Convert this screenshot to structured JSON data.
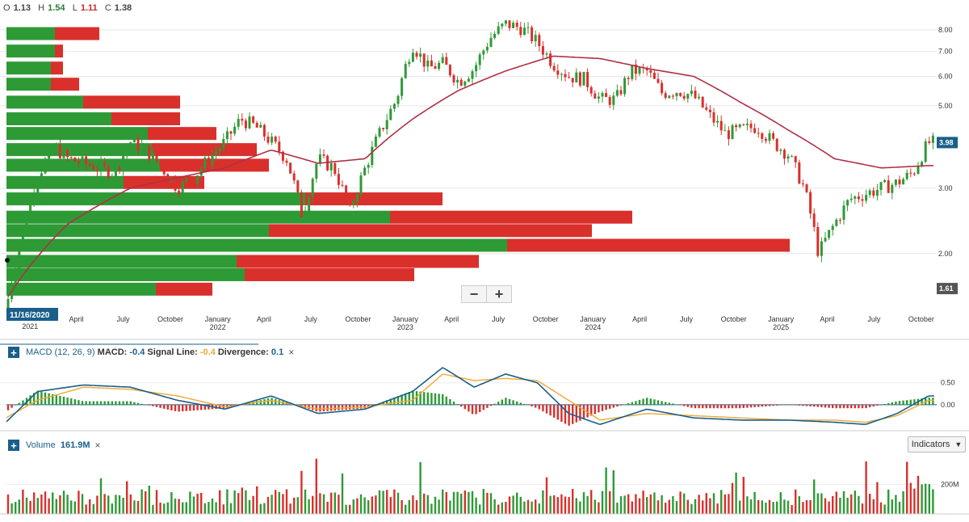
{
  "ohlc": {
    "o_label": "O",
    "o": "1.13",
    "h_label": "H",
    "h": "1.54",
    "l_label": "L",
    "l": "1.11",
    "c_label": "C",
    "c": "1.38"
  },
  "price_panel": {
    "y_ticks": [
      "8.00",
      "7.00",
      "6.00",
      "5.00",
      "3.00",
      "2.00"
    ],
    "last_price": "3.98",
    "ref_price": "1.61",
    "date_badge": "11/16/2020",
    "zoom_out": "−",
    "zoom_in": "+",
    "x_ticks": [
      {
        "label": "2021",
        "sub": ""
      },
      {
        "label": "April",
        "sub": ""
      },
      {
        "label": "July",
        "sub": ""
      },
      {
        "label": "October",
        "sub": ""
      },
      {
        "label": "January",
        "sub": "2022"
      },
      {
        "label": "April",
        "sub": ""
      },
      {
        "label": "July",
        "sub": ""
      },
      {
        "label": "October",
        "sub": ""
      },
      {
        "label": "January",
        "sub": "2023"
      },
      {
        "label": "April",
        "sub": ""
      },
      {
        "label": "July",
        "sub": ""
      },
      {
        "label": "October",
        "sub": ""
      },
      {
        "label": "January",
        "sub": "2024"
      },
      {
        "label": "April",
        "sub": ""
      },
      {
        "label": "July",
        "sub": ""
      },
      {
        "label": "October",
        "sub": ""
      },
      {
        "label": "January",
        "sub": "2025"
      },
      {
        "label": "April",
        "sub": ""
      },
      {
        "label": "July",
        "sub": ""
      },
      {
        "label": "October",
        "sub": ""
      }
    ]
  },
  "macd_panel": {
    "title": "MACD (12, 26, 9)",
    "macd_label": "MACD:",
    "macd": "-0.4",
    "signal_label": "Signal Line:",
    "signal": "-0.4",
    "div_label": "Divergence:",
    "div": "0.1",
    "close": "×",
    "y_ticks": [
      "0.50",
      "0.00"
    ]
  },
  "volume_panel": {
    "title": "Volume",
    "value": "161.9M",
    "close": "×",
    "y_tick": "200M",
    "indicators_btn": "Indicators"
  },
  "colors": {
    "up": "#2e9a36",
    "down": "#d9302c",
    "ma": "#b03045",
    "macd": "#1a5f8a",
    "signal": "#f0a830",
    "accent": "#1a5f8a"
  },
  "chart_data": [
    {
      "type": "candlestick",
      "x_range": [
        "2020-11-16",
        "2025-10-31"
      ],
      "y_scale": "log",
      "ylim": [
        1.4,
        8.8
      ],
      "y_ticks": [
        8,
        7,
        6,
        5,
        3,
        2
      ],
      "close_monthly": {
        "x": [
          "2020-11",
          "2020-12",
          "2021-01",
          "2021-02",
          "2021-03",
          "2021-04",
          "2021-05",
          "2021-06",
          "2021-07",
          "2021-08",
          "2021-09",
          "2021-10",
          "2021-11",
          "2021-12",
          "2022-01",
          "2022-02",
          "2022-03",
          "2022-04",
          "2022-05",
          "2022-06",
          "2022-07",
          "2022-08",
          "2022-09",
          "2022-10",
          "2022-11",
          "2022-12",
          "2023-01",
          "2023-02",
          "2023-03",
          "2023-04",
          "2023-05",
          "2023-06",
          "2023-07",
          "2023-08",
          "2023-09",
          "2023-10",
          "2023-11",
          "2023-12",
          "2024-01",
          "2024-02",
          "2024-03",
          "2024-04",
          "2024-05",
          "2024-06",
          "2024-07",
          "2024-08",
          "2024-09",
          "2024-10",
          "2024-11",
          "2024-12",
          "2025-01",
          "2025-02",
          "2025-03",
          "2025-04",
          "2025-05",
          "2025-06",
          "2025-07",
          "2025-08",
          "2025-09",
          "2025-10"
        ],
        "y": [
          1.4,
          2.2,
          3.2,
          3.9,
          3.6,
          3.5,
          3.4,
          3.3,
          4.0,
          3.8,
          3.4,
          3.0,
          3.2,
          3.6,
          4.0,
          4.6,
          4.4,
          4.0,
          3.6,
          2.5,
          3.6,
          3.4,
          2.6,
          3.4,
          4.3,
          5.2,
          7.3,
          6.3,
          6.5,
          5.8,
          6.3,
          7.6,
          8.3,
          8.1,
          7.4,
          6.5,
          6.0,
          5.9,
          5.2,
          5.2,
          6.2,
          6.2,
          5.4,
          5.5,
          5.3,
          4.7,
          4.2,
          4.3,
          4.4,
          4.0,
          3.7,
          3.0,
          2.0,
          2.4,
          2.8,
          2.9,
          3.0,
          3.1,
          3.3,
          3.98
        ]
      },
      "moving_average_monthly": {
        "x": [
          "2020-11",
          "2021-03",
          "2021-07",
          "2021-10",
          "2022-01",
          "2022-04",
          "2022-07",
          "2022-10",
          "2023-01",
          "2023-04",
          "2023-07",
          "2023-10",
          "2024-01",
          "2024-04",
          "2024-07",
          "2024-10",
          "2025-01",
          "2025-04",
          "2025-07",
          "2025-10"
        ],
        "y": [
          1.5,
          2.4,
          3.0,
          3.2,
          3.4,
          3.8,
          3.5,
          3.6,
          4.6,
          5.5,
          6.2,
          6.8,
          6.7,
          6.3,
          6.0,
          5.1,
          4.3,
          3.6,
          3.4,
          3.45
        ]
      },
      "volume_profile": [
        {
          "price": 7.8,
          "up": 60,
          "down": 55
        },
        {
          "price": 7.0,
          "up": 60,
          "down": 10
        },
        {
          "price": 6.3,
          "up": 55,
          "down": 15
        },
        {
          "price": 5.7,
          "up": 55,
          "down": 35
        },
        {
          "price": 5.1,
          "up": 95,
          "down": 120
        },
        {
          "price": 4.6,
          "up": 130,
          "down": 85
        },
        {
          "price": 4.2,
          "up": 175,
          "down": 85
        },
        {
          "price": 3.8,
          "up": 180,
          "down": 130
        },
        {
          "price": 3.45,
          "up": 190,
          "down": 135
        },
        {
          "price": 3.1,
          "up": 145,
          "down": 100
        },
        {
          "price": 2.8,
          "up": 370,
          "down": 170
        },
        {
          "price": 2.5,
          "up": 475,
          "down": 300
        },
        {
          "price": 2.3,
          "up": 325,
          "down": 400
        },
        {
          "price": 2.1,
          "up": 620,
          "down": 350
        },
        {
          "price": 1.9,
          "up": 285,
          "down": 300
        },
        {
          "price": 1.75,
          "up": 295,
          "down": 210
        },
        {
          "price": 1.6,
          "up": 185,
          "down": 70
        }
      ]
    },
    {
      "type": "macd",
      "ylim": [
        -0.5,
        0.9
      ],
      "y_ticks": [
        0.5,
        0
      ],
      "x": [
        "2020-11",
        "2021-01",
        "2021-04",
        "2021-07",
        "2021-10",
        "2022-01",
        "2022-04",
        "2022-07",
        "2022-10",
        "2023-01",
        "2023-03",
        "2023-05",
        "2023-07",
        "2023-09",
        "2023-11",
        "2024-01",
        "2024-04",
        "2024-07",
        "2024-10",
        "2025-01",
        "2025-04",
        "2025-06",
        "2025-08",
        "2025-10"
      ],
      "macd": [
        -0.4,
        0.3,
        0.45,
        0.4,
        0.1,
        -0.1,
        0.2,
        -0.2,
        -0.1,
        0.3,
        0.85,
        0.4,
        0.7,
        0.5,
        -0.2,
        -0.45,
        -0.1,
        -0.3,
        -0.35,
        -0.35,
        -0.4,
        -0.45,
        -0.2,
        0.2
      ],
      "signal": [
        -0.3,
        0.1,
        0.4,
        0.35,
        0.2,
        -0.05,
        0.1,
        -0.1,
        -0.05,
        0.1,
        0.7,
        0.55,
        0.6,
        0.55,
        0.1,
        -0.35,
        -0.2,
        -0.25,
        -0.3,
        -0.35,
        -0.35,
        -0.4,
        -0.25,
        0.1
      ]
    },
    {
      "type": "bar",
      "series_name": "Volume",
      "y_ticks": [
        200
      ],
      "units": "M",
      "last": 161.9
    }
  ]
}
